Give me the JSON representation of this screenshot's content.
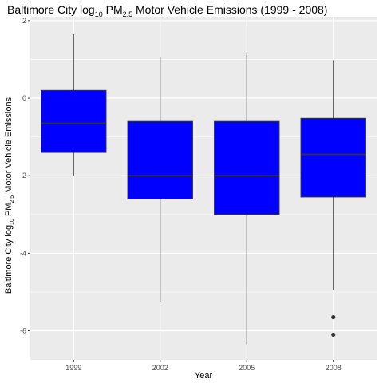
{
  "chart_data": {
    "type": "box",
    "title": {
      "prefix": "Baltimore City log",
      "sub1": "10",
      "middle": " PM",
      "sub2": "2.5",
      "suffix": " Motor Vehicle Emissions (1999 - 2008)"
    },
    "xlabel": "Year",
    "ylabel": {
      "prefix": "Baltimore City log",
      "sub1": "10",
      "middle": " PM",
      "sub2": "2.5",
      "suffix": " Motor Vehicle Emissions"
    },
    "categories": [
      "1999",
      "2002",
      "2005",
      "2008"
    ],
    "ylim": [
      -6.75,
      2.1
    ],
    "yticks": [
      2,
      0,
      -2,
      -4,
      -6
    ],
    "grid": true,
    "box_fill": "#0000ff",
    "panel_background": "#ebebeb",
    "boxes": [
      {
        "category": "1999",
        "whisker_low": -2.0,
        "q1": -1.4,
        "median": -0.65,
        "q3": 0.2,
        "whisker_high": 1.65,
        "outliers": []
      },
      {
        "category": "2002",
        "whisker_low": -5.25,
        "q1": -2.6,
        "median": -2.0,
        "q3": -0.6,
        "whisker_high": 1.05,
        "outliers": []
      },
      {
        "category": "2005",
        "whisker_low": -6.35,
        "q1": -3.0,
        "median": -2.0,
        "q3": -0.6,
        "whisker_high": 1.15,
        "outliers": []
      },
      {
        "category": "2008",
        "whisker_low": -4.95,
        "q1": -2.55,
        "median": -1.45,
        "q3": -0.52,
        "whisker_high": 0.98,
        "outliers": [
          -5.65,
          -6.1
        ]
      }
    ]
  }
}
